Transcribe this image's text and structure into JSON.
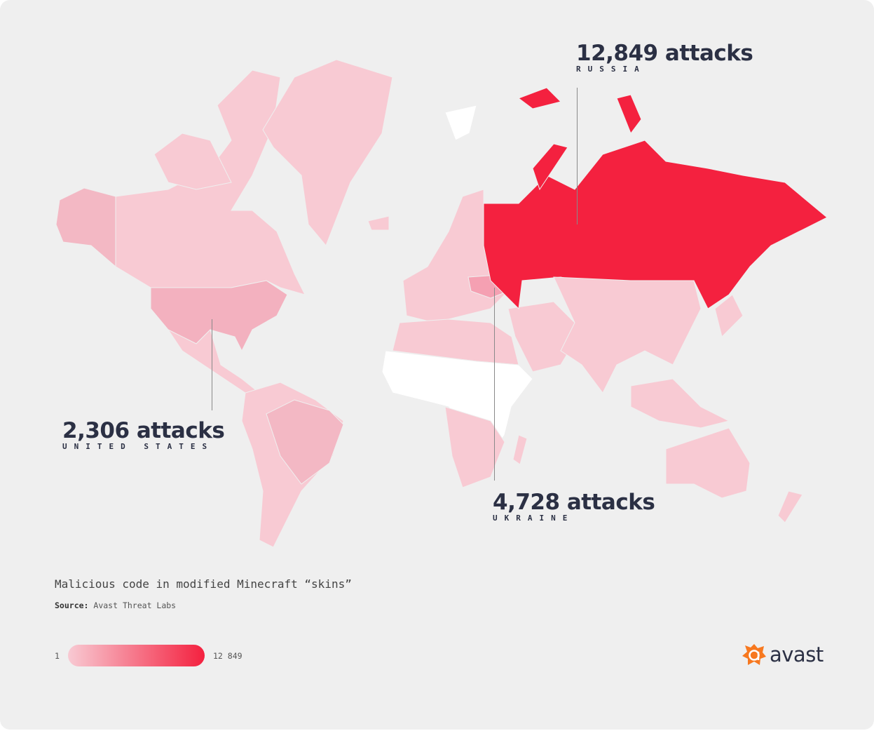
{
  "map": {
    "title": "Malicious code in modified Minecraft “skins”",
    "source_label": "Source:",
    "source_value": "Avast Threat Labs",
    "colors": {
      "background": "#efefef",
      "low": "#f8cad3",
      "mid": "#f3b1bf",
      "high": "#f4213f",
      "no_data": "#ffffff",
      "text": "#2b3044"
    },
    "callouts": [
      {
        "value": "12,849 attacks",
        "country": "RUSSIA",
        "attacks": 12849
      },
      {
        "value": "2,306 attacks",
        "country": "UNITED STATES",
        "attacks": 2306
      },
      {
        "value": "4,728 attacks",
        "country": "UKRAINE",
        "attacks": 4728
      }
    ],
    "legend": {
      "min": "1",
      "max": "12 849"
    },
    "logo": {
      "text": "avast",
      "icon": "avast-logo-icon"
    }
  }
}
